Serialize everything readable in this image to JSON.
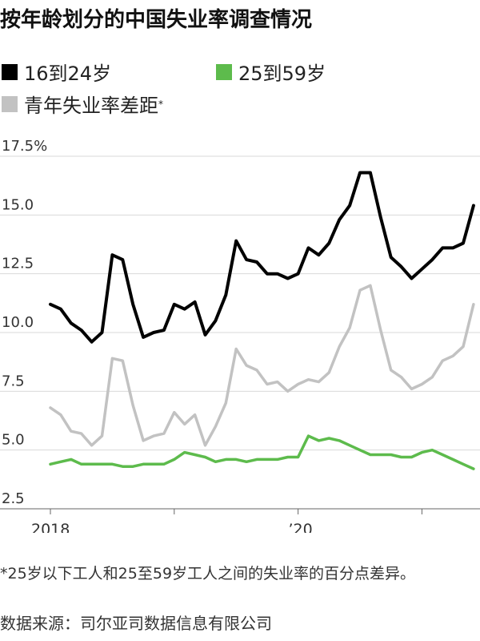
{
  "title": "按年龄划分的中国失业率调查情况",
  "legend": [
    {
      "label": "16到24岁",
      "color": "#000000"
    },
    {
      "label": "25到59岁",
      "color": "#5dbb4c"
    },
    {
      "label": "青年失业率差距",
      "marker": "*",
      "color": "#c2c2c2"
    }
  ],
  "y_ticks": [
    "17.5%",
    "15.0",
    "12.5",
    "10.0",
    "7.5",
    "5.0",
    "2.5"
  ],
  "x_ticks": [
    "2018",
    "’20"
  ],
  "footnote": "*25岁以下工人和25至59岁工人之间的失业率的百分点差异。",
  "source": "数据来源：司尔亚司数据信息有限公司",
  "chart_data": {
    "type": "line",
    "x": [
      "2018-01",
      "2018-02",
      "2018-03",
      "2018-04",
      "2018-05",
      "2018-06",
      "2018-07",
      "2018-08",
      "2018-09",
      "2018-10",
      "2018-11",
      "2018-12",
      "2019-01",
      "2019-02",
      "2019-03",
      "2019-04",
      "2019-05",
      "2019-06",
      "2019-07",
      "2019-08",
      "2019-09",
      "2019-10",
      "2019-11",
      "2019-12",
      "2020-01",
      "2020-02",
      "2020-03",
      "2020-04",
      "2020-05",
      "2020-06",
      "2020-07",
      "2020-08",
      "2020-09",
      "2020-10",
      "2020-11",
      "2020-12",
      "2021-01",
      "2021-02",
      "2021-03",
      "2021-04",
      "2021-05",
      "2021-06"
    ],
    "ylim": [
      2.5,
      17.5
    ],
    "grid": true,
    "legend_position": "top-left",
    "series": [
      {
        "name": "16到24岁",
        "color": "#000000",
        "values": [
          11.2,
          11.0,
          10.4,
          10.1,
          9.6,
          10.0,
          13.3,
          13.1,
          11.2,
          9.8,
          10.0,
          10.1,
          11.2,
          11.0,
          11.3,
          9.9,
          10.5,
          11.6,
          13.9,
          13.1,
          13.0,
          12.5,
          12.5,
          12.3,
          12.5,
          13.6,
          13.3,
          13.8,
          14.8,
          15.4,
          16.8,
          16.8,
          14.9,
          13.2,
          12.8,
          12.3,
          12.7,
          13.1,
          13.6,
          13.6,
          13.8,
          15.4
        ]
      },
      {
        "name": "25到59岁",
        "color": "#5dbb4c",
        "values": [
          4.4,
          4.5,
          4.6,
          4.4,
          4.4,
          4.4,
          4.4,
          4.3,
          4.3,
          4.4,
          4.4,
          4.4,
          4.6,
          4.9,
          4.8,
          4.7,
          4.5,
          4.6,
          4.6,
          4.5,
          4.6,
          4.6,
          4.6,
          4.7,
          4.7,
          5.6,
          5.4,
          5.5,
          5.4,
          5.2,
          5.0,
          4.8,
          4.8,
          4.8,
          4.7,
          4.7,
          4.9,
          5.0,
          4.8,
          4.6,
          4.4,
          4.2
        ]
      },
      {
        "name": "青年失业率差距",
        "color": "#c2c2c2",
        "values": [
          6.8,
          6.5,
          5.8,
          5.7,
          5.2,
          5.6,
          8.9,
          8.8,
          6.9,
          5.4,
          5.6,
          5.7,
          6.6,
          6.1,
          6.5,
          5.2,
          6.0,
          7.0,
          9.3,
          8.6,
          8.4,
          7.8,
          7.9,
          7.5,
          7.8,
          8.0,
          7.9,
          8.3,
          9.4,
          10.2,
          11.8,
          12.0,
          10.1,
          8.4,
          8.1,
          7.6,
          7.8,
          8.1,
          8.8,
          9.0,
          9.4,
          11.2
        ]
      }
    ]
  }
}
